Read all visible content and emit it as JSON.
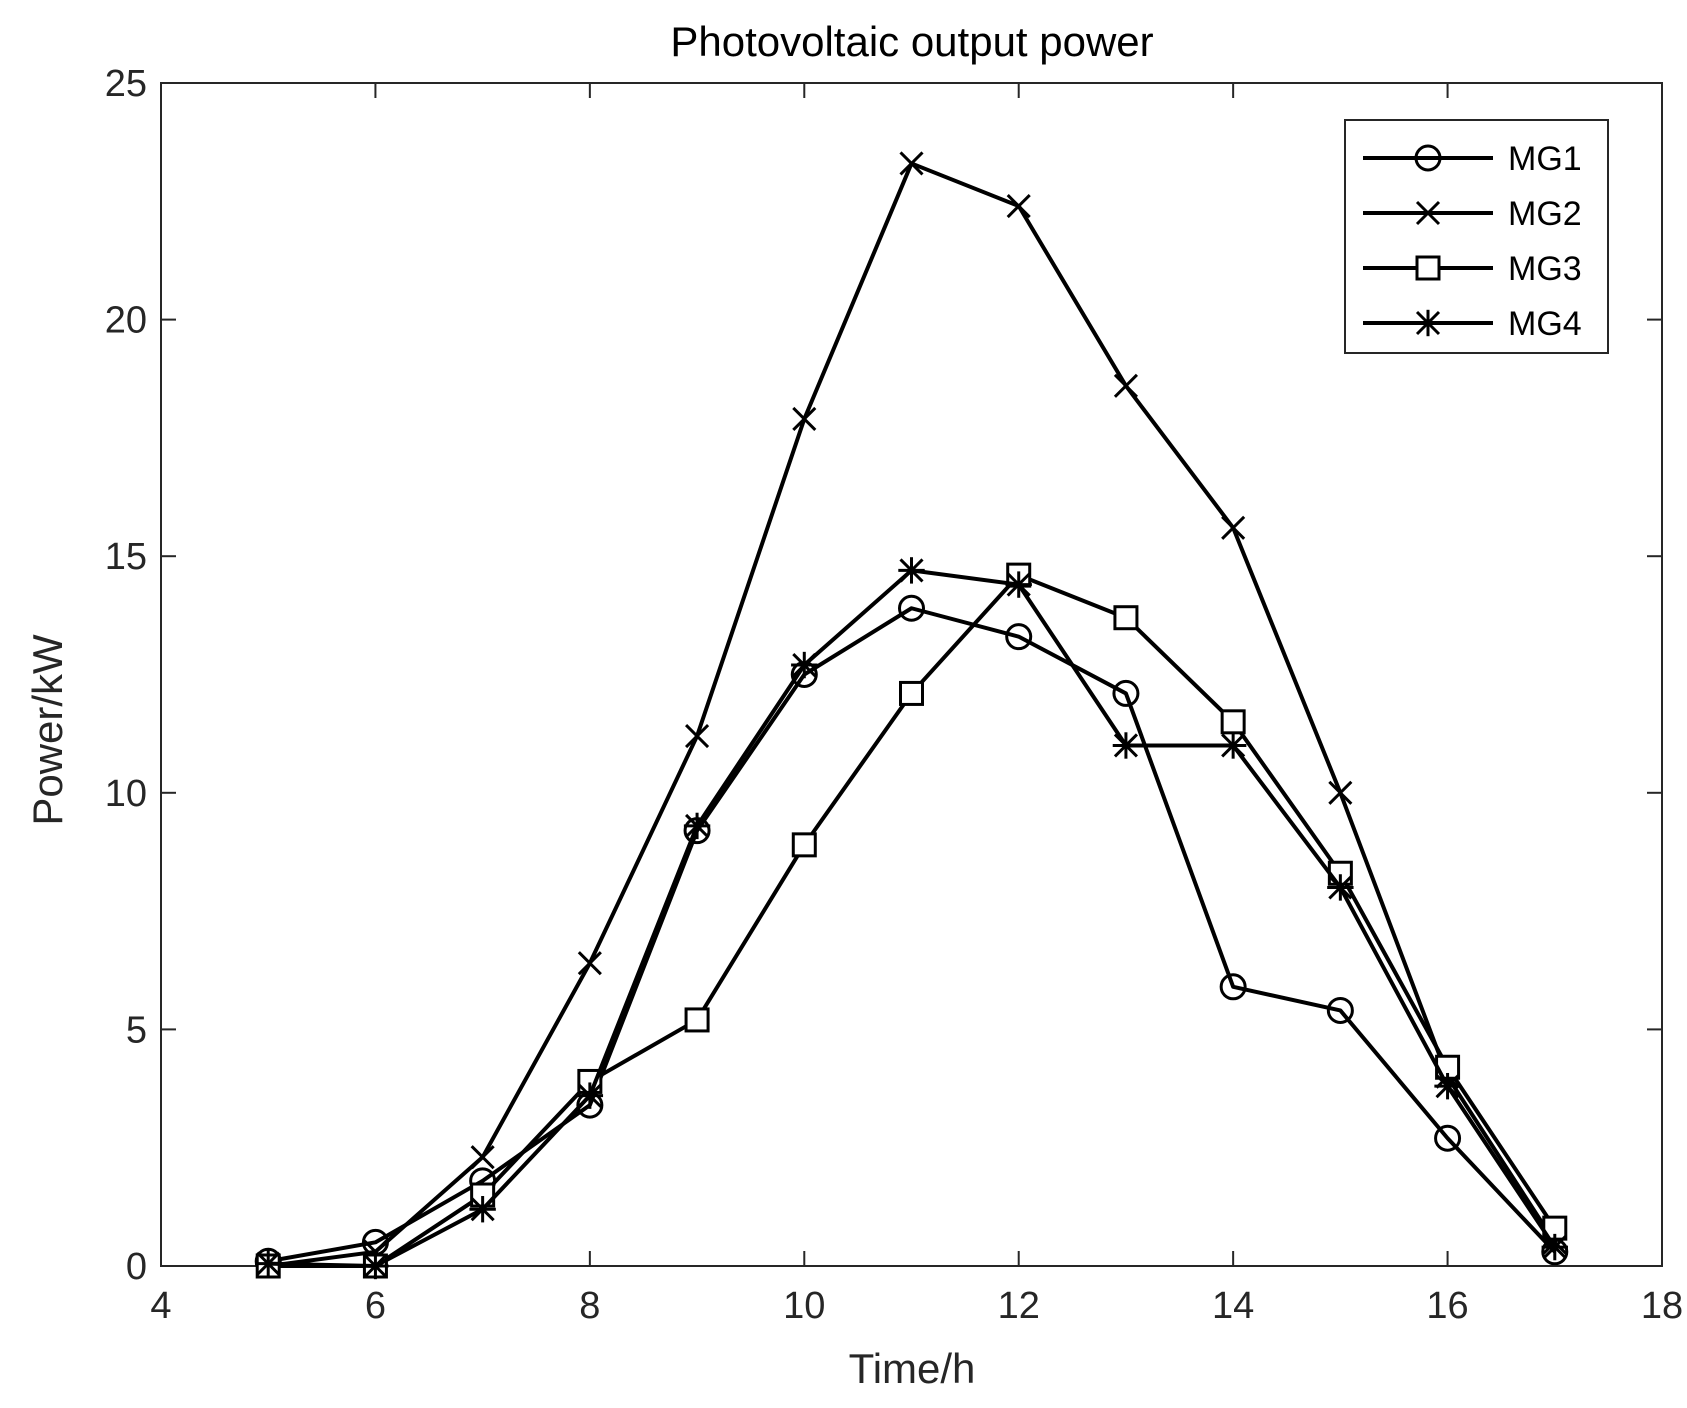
{
  "chart_data": {
    "type": "line",
    "title": "Photovoltaic output power",
    "xlabel": "Time/h",
    "ylabel": "Power/kW",
    "xlim": [
      4,
      18
    ],
    "ylim": [
      0,
      25
    ],
    "xticks": [
      4,
      6,
      8,
      10,
      12,
      14,
      16,
      18
    ],
    "yticks": [
      0,
      5,
      10,
      15,
      20,
      25
    ],
    "grid": false,
    "legend_position": "top-right",
    "line_color": "#000000",
    "x": [
      5,
      6,
      7,
      8,
      9,
      10,
      11,
      12,
      13,
      14,
      15,
      16,
      17
    ],
    "series": [
      {
        "name": "MG1",
        "marker": "circle",
        "values": [
          0.1,
          0.5,
          1.8,
          3.4,
          9.2,
          12.5,
          13.9,
          13.3,
          12.1,
          5.9,
          5.4,
          2.7,
          0.3
        ]
      },
      {
        "name": "MG2",
        "marker": "x",
        "values": [
          0.0,
          0.3,
          2.3,
          6.4,
          11.2,
          17.9,
          23.3,
          22.4,
          18.6,
          15.6,
          10.0,
          4.0,
          0.5
        ]
      },
      {
        "name": "MG3",
        "marker": "square",
        "values": [
          0.0,
          0.0,
          1.5,
          3.9,
          5.2,
          8.9,
          12.1,
          14.6,
          13.7,
          11.5,
          8.3,
          4.2,
          0.8
        ]
      },
      {
        "name": "MG4",
        "marker": "asterisk",
        "values": [
          0.05,
          0.0,
          1.2,
          3.6,
          9.3,
          12.7,
          14.7,
          14.4,
          11.0,
          11.0,
          8.0,
          3.8,
          0.4
        ]
      }
    ]
  }
}
